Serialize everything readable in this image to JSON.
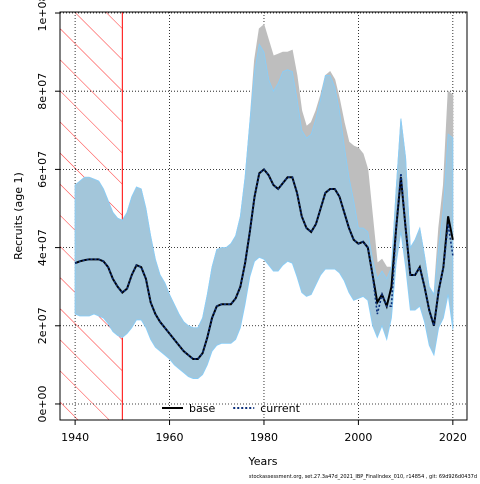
{
  "chart_data": {
    "type": "line",
    "xlabel": "Years",
    "ylabel": "Recruits (age 1)",
    "footer": "stockassessment.org, set.27.3a47d_2021_IBP_FinalIndex_010, r14854 , git: 69d926d0437d",
    "xlim": [
      1936.8,
      2023
    ],
    "ylim": [
      -4100000.0,
      100260000.0
    ],
    "xticks": [
      1940,
      1960,
      1980,
      2000,
      2020
    ],
    "yticks": [
      {
        "value": 0,
        "label": "0e+00"
      },
      {
        "value": 20000000.0,
        "label": "2e+07"
      },
      {
        "value": 40000000.0,
        "label": "4e+07"
      },
      {
        "value": 60000000.0,
        "label": "6e+07"
      },
      {
        "value": 80000000.0,
        "label": "8e+07"
      },
      {
        "value": 100000000.0,
        "label": "1e+08"
      }
    ],
    "grid": true,
    "legend": "bottom",
    "shaded_region": {
      "xlim": [
        1936.8,
        1950
      ],
      "color": "#ff0000"
    },
    "x": [
      1940,
      1941,
      1942,
      1943,
      1944,
      1945,
      1946,
      1947,
      1948,
      1949,
      1950,
      1951,
      1952,
      1953,
      1954,
      1955,
      1956,
      1957,
      1958,
      1959,
      1960,
      1961,
      1962,
      1963,
      1964,
      1965,
      1966,
      1967,
      1968,
      1969,
      1970,
      1971,
      1972,
      1973,
      1974,
      1975,
      1976,
      1977,
      1978,
      1979,
      1980,
      1981,
      1982,
      1983,
      1984,
      1985,
      1986,
      1987,
      1988,
      1989,
      1990,
      1991,
      1992,
      1993,
      1994,
      1995,
      1996,
      1997,
      1998,
      1999,
      2000,
      2001,
      2002,
      2003,
      2004,
      2005,
      2006,
      2007,
      2008,
      2009,
      2010,
      2011,
      2012,
      2013,
      2014,
      2015,
      2016,
      2017,
      2018,
      2019,
      2020
    ],
    "series": [
      {
        "name": "base",
        "color": "#000000",
        "band_color": "#bebebe",
        "dash": false,
        "values": [
          36000000.0,
          36500000.0,
          36800000.0,
          37000000.0,
          37000000.0,
          37000000.0,
          36500000.0,
          35000000.0,
          32000000.0,
          30000000.0,
          28500000.0,
          29500000.0,
          33000000.0,
          35500000.0,
          35000000.0,
          32000000.0,
          26000000.0,
          23000000.0,
          21000000.0,
          19500000.0,
          18000000.0,
          16500000.0,
          15000000.0,
          13500000.0,
          12500000.0,
          11500000.0,
          11500000.0,
          13000000.0,
          17000000.0,
          22000000.0,
          25000000.0,
          25500000.0,
          25500000.0,
          25500000.0,
          27000000.0,
          30000000.0,
          36000000.0,
          44000000.0,
          53000000.0,
          59000000.0,
          60000000.0,
          58500000.0,
          56000000.0,
          55000000.0,
          56500000.0,
          58000000.0,
          58000000.0,
          54000000.0,
          48000000.0,
          45000000.0,
          44000000.0,
          46000000.0,
          50000000.0,
          54000000.0,
          55000000.0,
          55000000.0,
          53000000.0,
          49000000.0,
          45000000.0,
          42000000.0,
          41000000.0,
          41500000.0,
          40000000.0,
          33000000.0,
          26000000.0,
          28000000.0,
          25000000.0,
          30000000.0,
          45000000.0,
          58000000.0,
          45000000.0,
          33000000.0,
          33000000.0,
          35000000.0,
          30000000.0,
          24000000.0,
          20000000.0,
          29000000.0,
          35000000.0,
          48000000.0,
          42000000.0
        ],
        "lower": [
          23500000.0,
          23000000.0,
          23000000.0,
          23000000.0,
          23500000.0,
          23000000.0,
          22500000.0,
          21000000.0,
          19000000.0,
          18000000.0,
          17500000.0,
          18500000.0,
          20000000.0,
          22000000.0,
          22000000.0,
          20000000.0,
          17000000.0,
          15000000.0,
          14000000.0,
          13000000.0,
          12000000.0,
          10500000.0,
          9500000.0,
          8500000.0,
          7500000.0,
          7000000.0,
          7000000.0,
          8000000.0,
          10500000.0,
          14000000.0,
          15500000.0,
          16000000.0,
          16000000.0,
          16000000.0,
          17000000.0,
          20000000.0,
          26000000.0,
          33000000.0,
          37000000.0,
          38000000.0,
          37500000.0,
          36000000.0,
          34500000.0,
          34500000.0,
          36000000.0,
          37000000.0,
          36500000.0,
          33000000.0,
          29000000.0,
          28000000.0,
          28500000.0,
          31000000.0,
          33500000.0,
          35000000.0,
          35000000.0,
          35000000.0,
          34000000.0,
          32000000.0,
          29000000.0,
          27000000.0,
          27500000.0,
          28000000.0,
          27000000.0,
          21000000.0,
          18000000.0,
          20500000.0,
          17000000.0,
          23000000.0,
          37000000.0,
          45000000.0,
          36000000.0,
          25000000.0,
          25000000.0,
          26000000.0,
          22000000.0,
          16000000.0,
          13000000.0,
          20000000.0,
          23000000.0,
          30000000.0,
          20000000.0
        ],
        "upper": [
          56000000.0,
          57000000.0,
          58000000.0,
          58000000.0,
          57500000.0,
          57000000.0,
          55000000.0,
          52000000.0,
          49000000.0,
          47500000.0,
          47000000.0,
          49000000.0,
          53000000.0,
          55500000.0,
          55000000.0,
          50000000.0,
          43000000.0,
          37000000.0,
          33000000.0,
          31000000.0,
          28000000.0,
          25500000.0,
          23000000.0,
          21000000.0,
          20000000.0,
          19500000.0,
          19500000.0,
          22000000.0,
          28000000.0,
          35000000.0,
          39500000.0,
          40000000.0,
          40000000.0,
          41000000.0,
          43000000.0,
          48000000.0,
          58000000.0,
          72000000.0,
          88000000.0,
          96000000.0,
          97000000.0,
          93000000.0,
          89000000.0,
          89500000.0,
          90000000.0,
          90000000.0,
          90500000.0,
          84000000.0,
          75000000.0,
          71000000.0,
          72000000.0,
          75000000.0,
          79000000.0,
          84000000.0,
          85000000.0,
          83000000.0,
          78000000.0,
          72000000.0,
          67000000.0,
          66000000.0,
          65500000.0,
          64000000.0,
          60000000.0,
          48000000.0,
          36000000.0,
          37000000.0,
          35000000.0,
          35000000.0,
          55000000.0,
          73000000.0,
          63000000.0,
          40000000.0,
          42000000.0,
          45000000.0,
          38000000.0,
          30000000.0,
          28000000.0,
          45000000.0,
          56000000.0,
          80000000.0,
          79000000.0
        ]
      },
      {
        "name": "current",
        "color": "#0b2f7a",
        "band_color": "#a3c6da",
        "dash": true,
        "values": [
          36000000.0,
          36500000.0,
          36800000.0,
          37000000.0,
          37000000.0,
          37000000.0,
          36500000.0,
          35000000.0,
          32000000.0,
          30000000.0,
          28500000.0,
          29500000.0,
          33000000.0,
          35500000.0,
          35000000.0,
          32000000.0,
          26000000.0,
          23000000.0,
          21000000.0,
          19500000.0,
          18000000.0,
          16500000.0,
          15000000.0,
          13500000.0,
          12500000.0,
          11500000.0,
          11500000.0,
          13000000.0,
          17000000.0,
          22000000.0,
          25000000.0,
          25500000.0,
          25500000.0,
          25500000.0,
          27000000.0,
          30000000.0,
          36000000.0,
          44000000.0,
          53000000.0,
          59000000.0,
          60000000.0,
          58500000.0,
          56000000.0,
          55000000.0,
          56500000.0,
          58000000.0,
          58000000.0,
          54000000.0,
          48000000.0,
          45000000.0,
          44000000.0,
          46000000.0,
          50000000.0,
          54000000.0,
          55000000.0,
          55000000.0,
          53000000.0,
          49000000.0,
          45000000.0,
          42000000.0,
          41000000.0,
          41500000.0,
          40000000.0,
          33000000.0,
          23000000.0,
          28000000.0,
          25000000.0,
          25000000.0,
          45000000.0,
          59000000.0,
          45000000.0,
          33000000.0,
          33000000.0,
          35000000.0,
          30000000.0,
          24000000.0,
          20000000.0,
          29000000.0,
          35000000.0,
          46000000.0,
          38000000.0
        ],
        "lower": [
          23000000.0,
          22500000.0,
          22500000.0,
          22500000.0,
          23000000.0,
          22500000.0,
          22000000.0,
          20500000.0,
          18500000.0,
          17500000.0,
          17000000.0,
          18000000.0,
          19500000.0,
          21500000.0,
          21500000.0,
          19500000.0,
          16500000.0,
          14500000.0,
          13500000.0,
          12500000.0,
          11500000.0,
          10000000.0,
          9000000.0,
          8000000.0,
          7000000.0,
          6500000.0,
          6500000.0,
          7500000.0,
          10000000.0,
          13500000.0,
          15000000.0,
          15500000.0,
          15500000.0,
          15500000.0,
          16500000.0,
          19500000.0,
          25500000.0,
          32500000.0,
          36500000.0,
          37500000.0,
          37000000.0,
          35500000.0,
          34000000.0,
          34000000.0,
          35500000.0,
          36500000.0,
          36000000.0,
          32500000.0,
          28500000.0,
          27500000.0,
          28000000.0,
          30500000.0,
          33000000.0,
          34500000.0,
          34500000.0,
          34500000.0,
          33500000.0,
          31500000.0,
          28500000.0,
          26500000.0,
          27000000.0,
          27500000.0,
          26500000.0,
          20000000.0,
          17000000.0,
          20000000.0,
          16500000.0,
          22000000.0,
          36000000.0,
          44000000.0,
          35000000.0,
          24000000.0,
          24000000.0,
          25000000.0,
          21000000.0,
          15000000.0,
          12500000.0,
          19500000.0,
          22000000.0,
          28000000.0,
          19000000.0
        ],
        "upper": [
          56000000.0,
          57000000.0,
          58000000.0,
          58000000.0,
          57500000.0,
          57000000.0,
          55000000.0,
          52000000.0,
          49000000.0,
          47500000.0,
          47000000.0,
          49000000.0,
          53000000.0,
          55500000.0,
          55000000.0,
          50000000.0,
          43000000.0,
          37000000.0,
          33000000.0,
          31000000.0,
          28000000.0,
          25500000.0,
          23000000.0,
          21000000.0,
          20000000.0,
          19500000.0,
          19500000.0,
          22000000.0,
          28000000.0,
          35000000.0,
          39500000.0,
          40000000.0,
          40000000.0,
          41000000.0,
          43000000.0,
          48000000.0,
          58000000.0,
          72000000.0,
          85000000.0,
          92000000.0,
          90000000.0,
          83000000.0,
          80000000.0,
          82000000.0,
          85000000.0,
          85500000.0,
          85000000.0,
          78000000.0,
          70000000.0,
          68000000.0,
          69000000.0,
          73000000.0,
          78000000.0,
          84000000.0,
          84000000.0,
          81000000.0,
          75000000.0,
          66000000.0,
          58000000.0,
          52000000.0,
          45000000.0,
          45000000.0,
          44000000.0,
          37000000.0,
          32000000.0,
          34000000.0,
          32000000.0,
          35000000.0,
          55000000.0,
          73000000.0,
          63000000.0,
          40000000.0,
          42000000.0,
          45000000.0,
          38000000.0,
          30000000.0,
          28000000.0,
          40000000.0,
          50000000.0,
          69000000.0,
          68000000.0
        ]
      }
    ]
  }
}
